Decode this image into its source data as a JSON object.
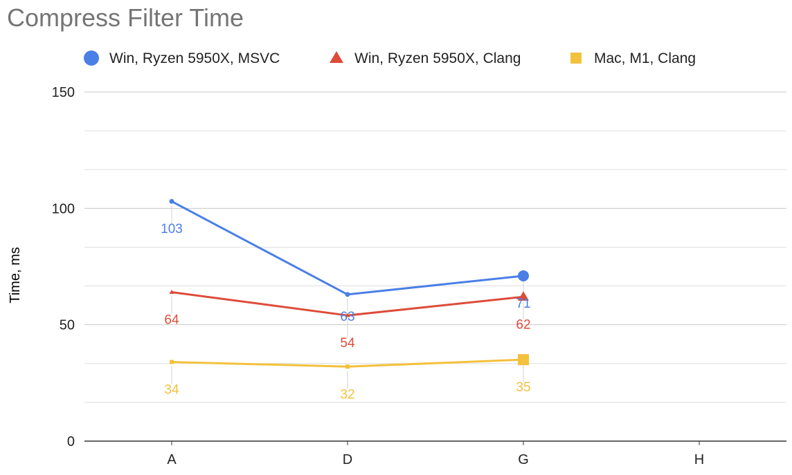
{
  "chart_data": {
    "type": "line",
    "title": "Compress Filter Time",
    "xlabel": "",
    "ylabel": "Time, ms",
    "categories": [
      "A",
      "D",
      "G",
      "H"
    ],
    "ylim": [
      0,
      150
    ],
    "yticks": [
      "0",
      "50",
      "100",
      "150"
    ],
    "grid": true,
    "legend_position": "top-left",
    "series": [
      {
        "name": "Win, Ryzen 5950X, MSVC",
        "color": "#4a7fe6",
        "marker": "circle",
        "values": [
          103,
          63,
          71,
          null
        ],
        "labels": [
          "103",
          "63",
          "71",
          ""
        ]
      },
      {
        "name": "Win, Ryzen 5950X, Clang",
        "color": "#dd4b39",
        "marker": "triangle",
        "values": [
          64,
          54,
          62,
          null
        ],
        "labels": [
          "64",
          "54",
          "62",
          ""
        ]
      },
      {
        "name": "Mac, M1, Clang",
        "color": "#f4c13c",
        "marker": "square",
        "values": [
          34,
          32,
          35,
          null
        ],
        "labels": [
          "34",
          "32",
          "35",
          ""
        ]
      }
    ]
  }
}
